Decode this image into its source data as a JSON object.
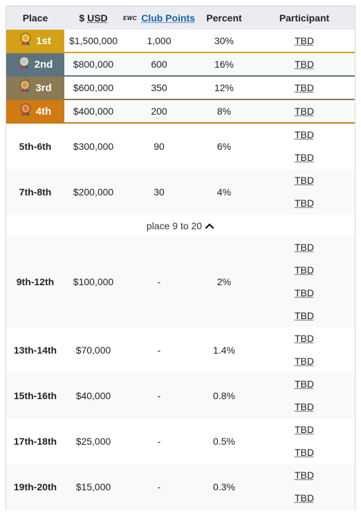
{
  "header": {
    "place": "Place",
    "usd_prefix": "$",
    "usd": "USD",
    "ewc_logo": "EWC",
    "club_points": "Club Points",
    "percent": "Percent",
    "participant": "Participant"
  },
  "top_rows": [
    {
      "rank": "1st",
      "usd": "$1,500,000",
      "points": "1,000",
      "percent": "30%",
      "participant": "TBD",
      "medal_color": "#e0b030"
    },
    {
      "rank": "2nd",
      "usd": "$800,000",
      "points": "600",
      "percent": "16%",
      "participant": "TBD",
      "medal_color": "#b9c2c8"
    },
    {
      "rank": "3rd",
      "usd": "$600,000",
      "points": "350",
      "percent": "12%",
      "participant": "TBD",
      "medal_color": "#c9964a"
    },
    {
      "rank": "4th",
      "usd": "$400,000",
      "points": "200",
      "percent": "8%",
      "participant": "TBD",
      "medal_color": "#d9733a"
    }
  ],
  "mid_rows": [
    {
      "place": "5th-6th",
      "usd": "$300,000",
      "points": "90",
      "percent": "6%",
      "participants": [
        "TBD",
        "TBD"
      ]
    },
    {
      "place": "7th-8th",
      "usd": "$200,000",
      "points": "30",
      "percent": "4%",
      "participants": [
        "TBD",
        "TBD"
      ]
    }
  ],
  "toggle": {
    "label": "place 9 to 20",
    "icon": "chevron-up-icon"
  },
  "lower_rows": [
    {
      "place": "9th-12th",
      "usd": "$100,000",
      "points": "-",
      "percent": "2%",
      "participants": [
        "TBD",
        "TBD",
        "TBD",
        "TBD"
      ]
    },
    {
      "place": "13th-14th",
      "usd": "$70,000",
      "points": "-",
      "percent": "1.4%",
      "participants": [
        "TBD",
        "TBD"
      ]
    },
    {
      "place": "15th-16th",
      "usd": "$40,000",
      "points": "-",
      "percent": "0.8%",
      "participants": [
        "TBD",
        "TBD"
      ]
    },
    {
      "place": "17th-18th",
      "usd": "$25,000",
      "points": "-",
      "percent": "0.5%",
      "participants": [
        "TBD",
        "TBD"
      ]
    },
    {
      "place": "19th-20th",
      "usd": "$15,000",
      "points": "-",
      "percent": "0.3%",
      "participants": [
        "TBD",
        "TBD"
      ]
    }
  ]
}
